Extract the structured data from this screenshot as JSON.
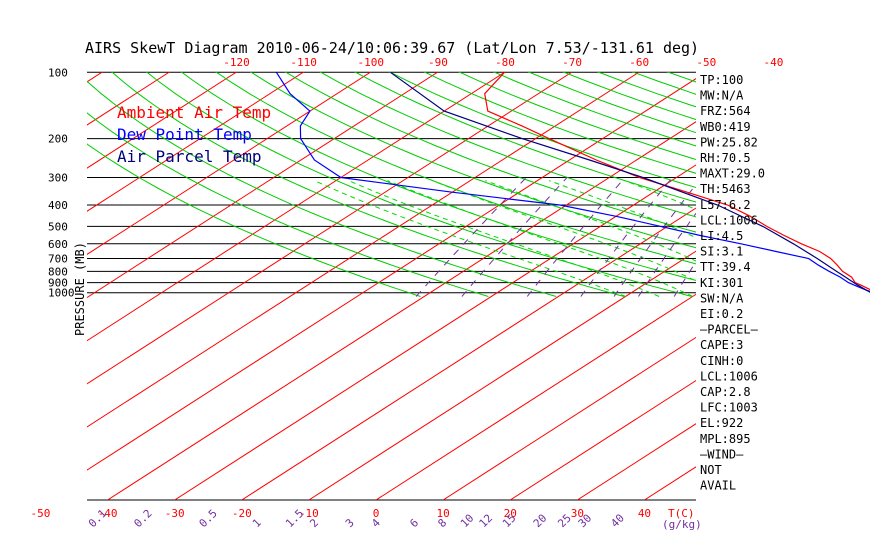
{
  "chart_data": {
    "type": "line",
    "title": "AIRS SkewT Diagram 2010-06-24/10:06:39.67 (Lat/Lon 7.53/-131.61 deg)",
    "ylabel": "PRESSURE (MB)",
    "xlabel": "T(C)",
    "mixing_ratio_unit": "(g/kg)",
    "pressure_ticks": [
      "100",
      "200",
      "300",
      "400",
      "500",
      "600",
      "700",
      "800",
      "900",
      "1000"
    ],
    "pressure_values": [
      100,
      200,
      300,
      400,
      500,
      600,
      700,
      800,
      900,
      1000
    ],
    "top_temp_ticks": [
      -120,
      -110,
      -100,
      -90,
      -80,
      -70,
      -60,
      -50,
      -40
    ],
    "bottom_temp_ticks": [
      -50,
      -40,
      -30,
      -20,
      -10,
      0,
      10,
      20,
      30,
      40
    ],
    "mixing_ratio_labels": [
      "0.1",
      "0.2",
      "0.5",
      "1",
      "1.5",
      "2",
      "3",
      "4",
      "6",
      "8",
      "10",
      "12",
      "15",
      "20",
      "25",
      "30",
      "40"
    ],
    "legend": [
      {
        "name": "Ambient Air Temp",
        "color": "#ff0000"
      },
      {
        "name": "Dew Point Temp",
        "color": "#0000ff"
      },
      {
        "name": "Air Parcel Temp",
        "color": "#000080"
      }
    ],
    "series": [
      {
        "name": "Ambient Air Temp",
        "color": "#ff0000",
        "points": [
          [
            1006,
            26.5
          ],
          [
            975,
            25.2
          ],
          [
            925,
            22.5
          ],
          [
            900,
            21.0
          ],
          [
            850,
            19.2
          ],
          [
            800,
            16.5
          ],
          [
            750,
            14.3
          ],
          [
            700,
            11.8
          ],
          [
            650,
            8.5
          ],
          [
            600,
            4.0
          ],
          [
            550,
            -0.5
          ],
          [
            500,
            -5.2
          ],
          [
            450,
            -10.0
          ],
          [
            400,
            -16.0
          ],
          [
            350,
            -25.0
          ],
          [
            300,
            -35.5
          ],
          [
            250,
            -46.0
          ],
          [
            200,
            -58.0
          ],
          [
            175,
            -65.0
          ],
          [
            150,
            -73.5
          ],
          [
            125,
            -78.0
          ],
          [
            100,
            -80.0
          ]
        ]
      },
      {
        "name": "Dew Point Temp",
        "color": "#0000ff",
        "points": [
          [
            1006,
            26.0
          ],
          [
            975,
            24.5
          ],
          [
            925,
            21.5
          ],
          [
            900,
            20.0
          ],
          [
            850,
            17.5
          ],
          [
            800,
            14.5
          ],
          [
            750,
            11.5
          ],
          [
            700,
            8.5
          ],
          [
            650,
            2.0
          ],
          [
            600,
            -5.0
          ],
          [
            550,
            -13.0
          ],
          [
            500,
            -21.0
          ],
          [
            450,
            -30.0
          ],
          [
            400,
            -41.0
          ],
          [
            350,
            -60.0
          ],
          [
            300,
            -80.0
          ],
          [
            250,
            -88.0
          ],
          [
            200,
            -95.0
          ],
          [
            175,
            -98.0
          ],
          [
            150,
            -100.0
          ],
          [
            125,
            -107.0
          ],
          [
            100,
            -114.0
          ]
        ]
      },
      {
        "name": "Air Parcel Temp",
        "color": "#000080",
        "points": [
          [
            1006,
            26.5
          ],
          [
            975,
            24.5
          ],
          [
            925,
            22.0
          ],
          [
            900,
            20.8
          ],
          [
            850,
            18.3
          ],
          [
            800,
            15.6
          ],
          [
            700,
            9.8
          ],
          [
            600,
            2.8
          ],
          [
            500,
            -5.8
          ],
          [
            400,
            -17.5
          ],
          [
            300,
            -35.0
          ],
          [
            250,
            -47.0
          ],
          [
            200,
            -62.0
          ],
          [
            150,
            -80.0
          ],
          [
            100,
            -97.0
          ]
        ]
      }
    ],
    "ylim": [
      100,
      1040
    ],
    "grid": true,
    "legend_placement": "top-left"
  },
  "indices": [
    "TP:100",
    "MW:N/A",
    "FRZ:564",
    "WB0:419",
    "PW:25.82",
    "RH:70.5",
    "MAXT:29.0",
    "TH:5463",
    "L57:6.2",
    "LCL:1006",
    "LI:4.5",
    "SI:3.1",
    "TT:39.4",
    "KI:301",
    "SW:N/A",
    "EI:0.2",
    "—PARCEL—",
    "CAPE:3",
    "CINH:0",
    "LCL:1006",
    "CAP:2.8",
    "LFC:1003",
    "EL:922",
    "MPL:895",
    "—WIND—",
    "NOT",
    "AVAIL"
  ],
  "colors": {
    "isotherm": "#ff0000",
    "dry_adiabat": "#00cc00",
    "moist_adiabat": "#00dd00",
    "mixing_ratio": "#7030a0",
    "axis_tick": "#ff0000",
    "mixing_label": "#7030a0"
  }
}
